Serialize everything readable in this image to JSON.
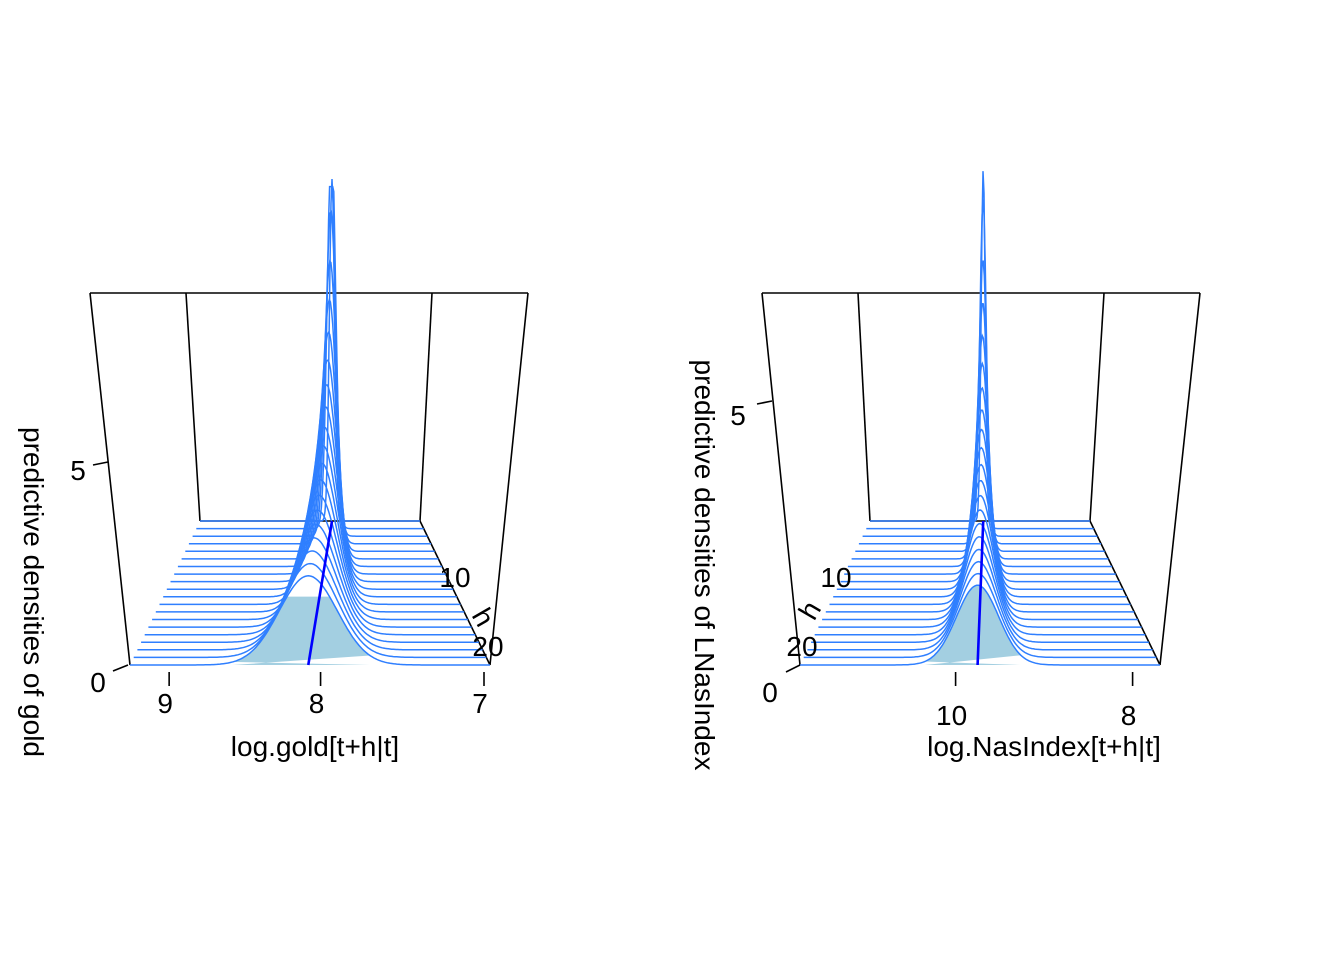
{
  "chart_data": [
    {
      "type": "3d-density-ridges",
      "title": "",
      "xlabel": "log.gold[t+h|t]",
      "ylabel": "h",
      "zlabel": "predictive densities of gold",
      "x_ticks": [
        "9",
        "8",
        "7"
      ],
      "x_reversed": true,
      "h_ticks": [
        "10",
        "20"
      ],
      "z_ticks": [
        "0",
        "5"
      ],
      "h_count": 20,
      "peak_density_h1": 9.0,
      "spread_h1": 0.025,
      "spread_h20": 0.17,
      "mean_path": {
        "h1": 7.84,
        "h20": 8.06
      },
      "shaded_band_h20": [
        7.7,
        8.5
      ],
      "colors": {
        "ridge": "#2f7fff",
        "fill": "#a3cfe1",
        "mean": "#0000ff",
        "frame": "#000000"
      }
    },
    {
      "type": "3d-density-ridges",
      "title": "",
      "xlabel": "log.NasIndex[t+h|t]",
      "ylabel": "h",
      "zlabel": "predictive densities of LNasIndex",
      "x_ticks": [
        "10",
        "8"
      ],
      "x_reversed": true,
      "h_ticks": [
        "10",
        "20"
      ],
      "z_ticks": [
        "0",
        "5"
      ],
      "h_count": 20,
      "peak_density_h1": 8.0,
      "spread_h1": 0.035,
      "spread_h20": 0.22,
      "mean_path": {
        "h1": 9.67,
        "h20": 9.75
      },
      "shaded_band_h20": [
        9.3,
        10.3
      ],
      "colors": {
        "ridge": "#2f7fff",
        "fill": "#a3cfe1",
        "mean": "#0000ff",
        "frame": "#000000"
      }
    }
  ]
}
